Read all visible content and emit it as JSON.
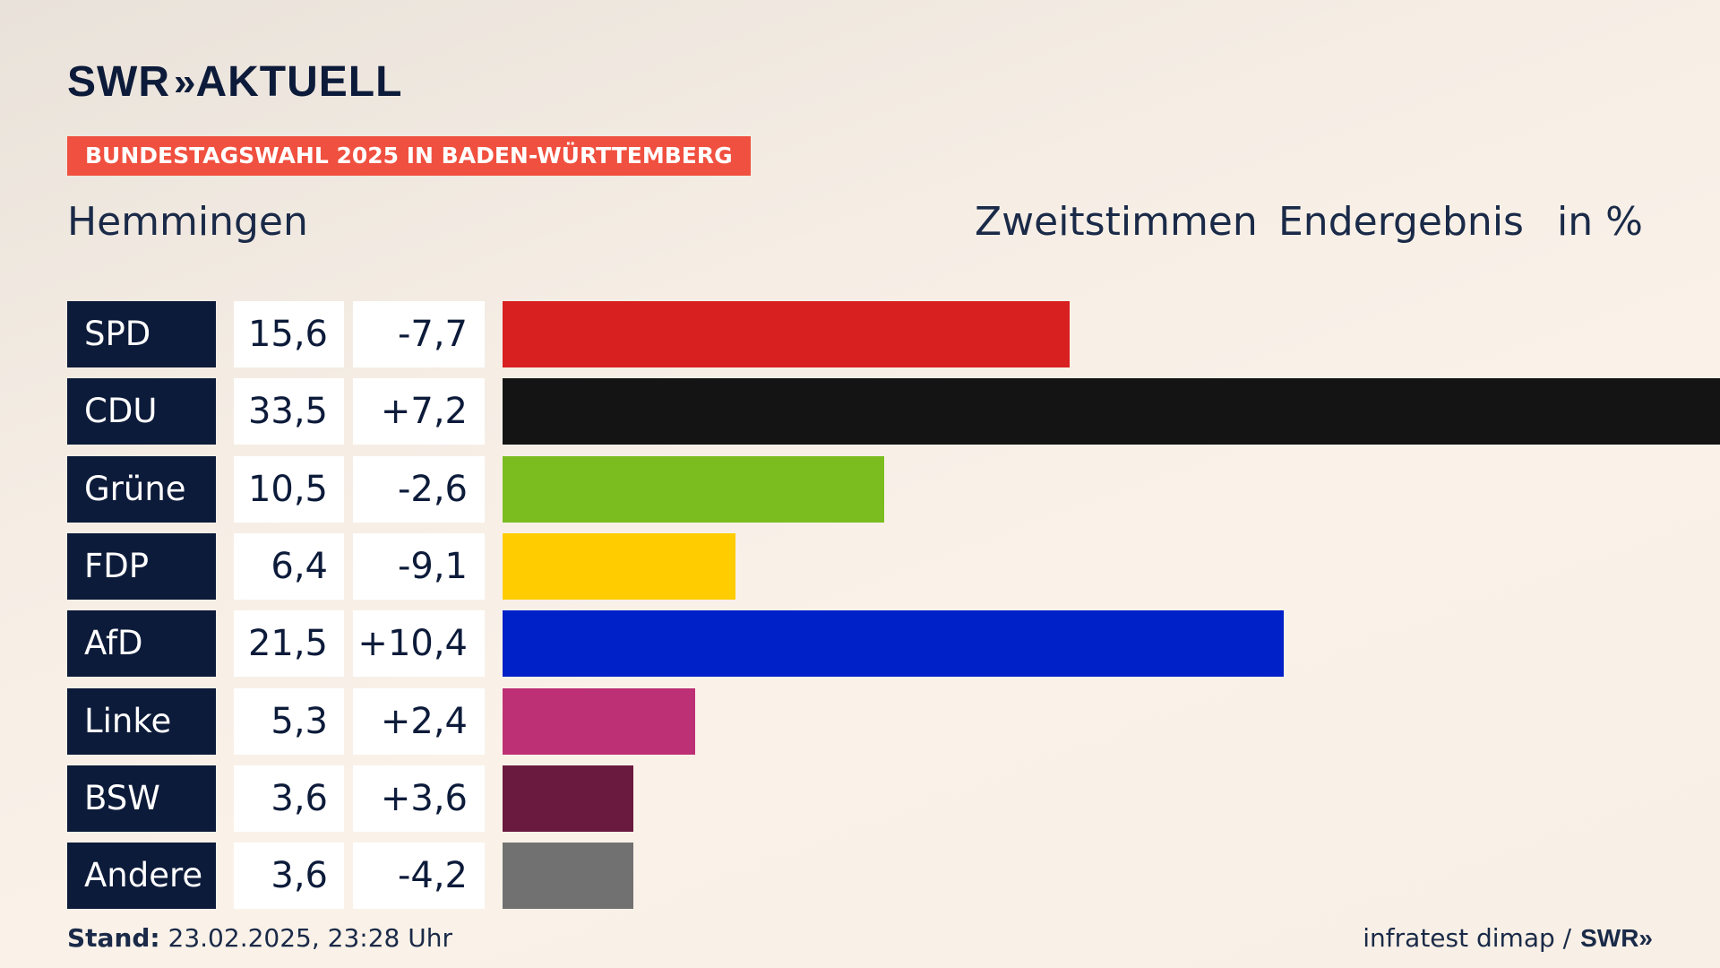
{
  "brand": {
    "name": "SWR",
    "chevrons": "»",
    "product": "AKTUELL"
  },
  "banner": "BUNDESTAGSWAHL 2025 IN BADEN-WÜRTTEMBERG",
  "place": "Hemmingen",
  "header": {
    "vote_type": "Zweitstimmen",
    "status": "Endergebnis",
    "unit": "in %"
  },
  "chart_data": {
    "type": "bar",
    "categories": [
      "SPD",
      "CDU",
      "Grüne",
      "FDP",
      "AfD",
      "Linke",
      "BSW",
      "Andere"
    ],
    "values": [
      15.6,
      33.5,
      10.5,
      6.4,
      21.5,
      5.3,
      3.6,
      3.6
    ],
    "value_labels": [
      "15,6",
      "33,5",
      "10,5",
      "6,4",
      "21,5",
      "5,3",
      "3,6",
      "3,6"
    ],
    "diff_labels": [
      "-7,7",
      "+7,2",
      "-2,6",
      "-9,1",
      "+10,4",
      "+2,4",
      "+3,6",
      "-4,2"
    ],
    "diffs": [
      -7.7,
      7.2,
      -2.6,
      -9.1,
      10.4,
      2.4,
      3.6,
      -4.2
    ],
    "colors": [
      "#d82020",
      "#141414",
      "#7bbd1f",
      "#ffcc00",
      "#0020c8",
      "#bd3075",
      "#6a1a3e",
      "#717171"
    ],
    "xlim": [
      0,
      33.5
    ]
  },
  "footer": {
    "stand_label": "Stand:",
    "stand_value": "23.02.2025, 23:28 Uhr",
    "source": "infratest dimap /",
    "source_brand": "SWR»"
  }
}
